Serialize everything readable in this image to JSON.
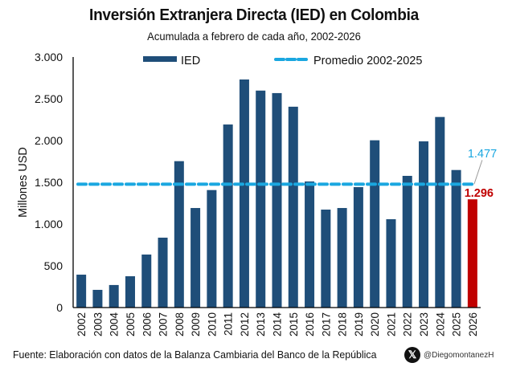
{
  "chart_data": {
    "type": "bar",
    "title": "Inversión Extranjera Directa (IED) en Colombia",
    "subtitle": "Acumulada a febrero de cada año, 2002-2026",
    "xlabel": "",
    "ylabel": "Millones USD",
    "ylim": [
      0,
      3000
    ],
    "yticks": [
      0,
      500,
      1000,
      1500,
      2000,
      2500,
      3000
    ],
    "ytick_labels": [
      "0",
      "500",
      "1.000",
      "1.500",
      "2.000",
      "2.500",
      "3.000"
    ],
    "grid": false,
    "legend_position": "top",
    "categories": [
      "2002",
      "2003",
      "2004",
      "2005",
      "2006",
      "2007",
      "2008",
      "2009",
      "2010",
      "2011",
      "2012",
      "2013",
      "2014",
      "2015",
      "2016",
      "2017",
      "2018",
      "2019",
      "2020",
      "2021",
      "2022",
      "2023",
      "2024",
      "2025",
      "2026"
    ],
    "series": [
      {
        "name": "IED",
        "type": "bar",
        "color": "#1F4E79",
        "highlight_color": "#C00000",
        "highlight_category": "2026",
        "values": [
          394,
          212,
          270,
          375,
          635,
          837,
          1753,
          1192,
          1407,
          2192,
          2731,
          2598,
          2568,
          2405,
          1510,
          1173,
          1192,
          1442,
          2003,
          1058,
          1577,
          1990,
          2282,
          1647,
          1296
        ]
      },
      {
        "name": "Promedio 2002-2025",
        "type": "line",
        "style": "dashed",
        "color": "#1AA7E0",
        "value": 1477
      }
    ],
    "annotations": [
      {
        "text": "1.477",
        "target": "Promedio 2002-2025",
        "color": "#1AA7E0"
      },
      {
        "text": "1.296",
        "target": "2026",
        "color": "#C00000",
        "bold": true
      }
    ]
  },
  "footer": {
    "source": "Fuente: Elaboración con datos de la Balanza Cambiaria del Banco de la República",
    "social_icon": "x-logo-icon",
    "handle": "@DiegomontanezH"
  }
}
